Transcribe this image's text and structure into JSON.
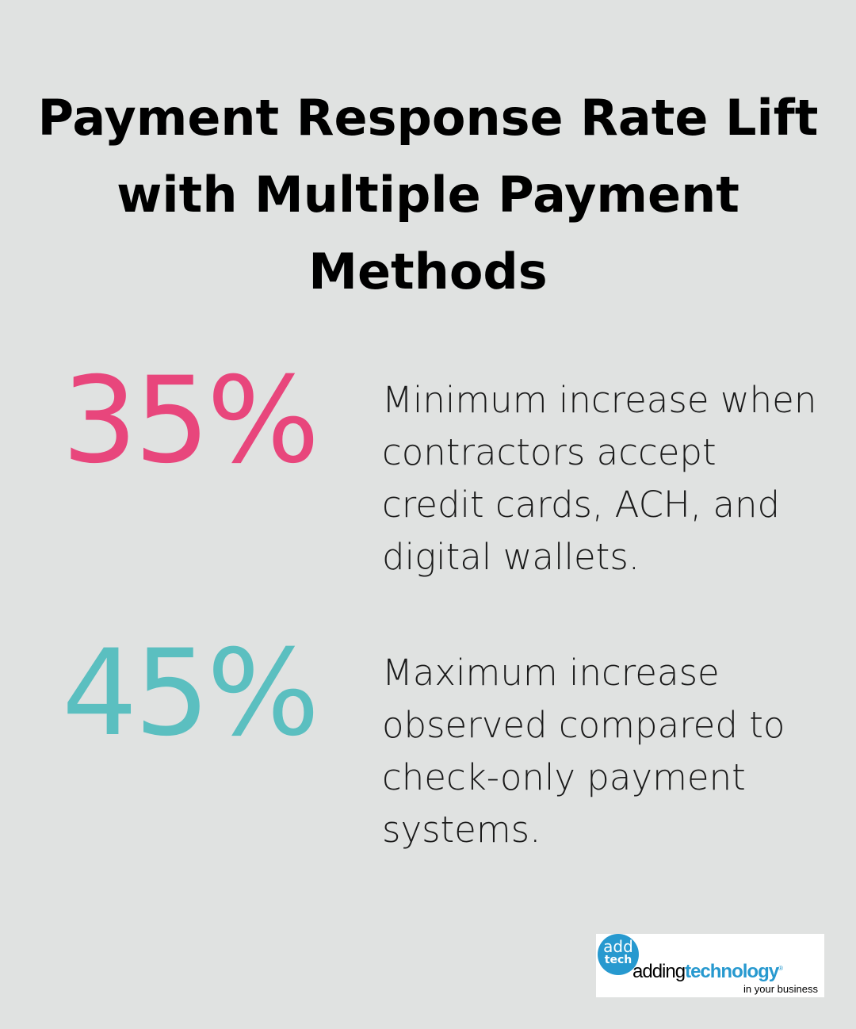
{
  "title": "Payment Response Rate Lift with Multiple Payment Methods",
  "stats": [
    {
      "value": "35%",
      "color": "#e8467c",
      "description": "Minimum increase when contractors accept credit cards, ACH, and digital wallets."
    },
    {
      "value": "45%",
      "color": "#5bbfc0",
      "description": "Maximum increase observed compared to check-only payment systems."
    }
  ],
  "logo": {
    "badge_top": "add",
    "badge_bottom": "tech",
    "word_1": "adding",
    "word_2": "technology",
    "reg": "®",
    "tagline": "in your business"
  }
}
